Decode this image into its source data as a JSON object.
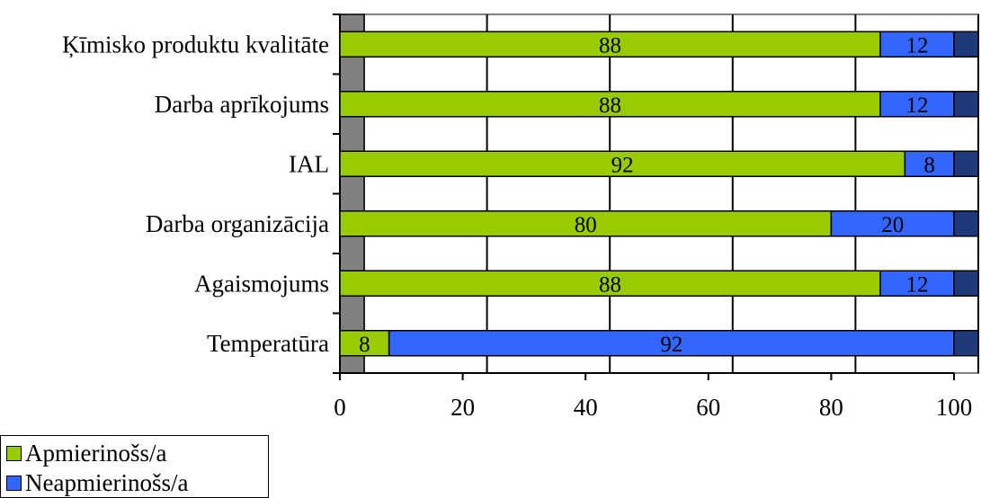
{
  "chart_data": {
    "type": "bar",
    "orientation": "horizontal",
    "stacked": true,
    "categories": [
      "Ķīmisko produktu kvalitāte",
      "Darba aprīkojums",
      "IAL",
      "Darba organizācija",
      "Agaismojums",
      "Temperatūra"
    ],
    "series": [
      {
        "name": "Apmierinošs/a",
        "color": "#99cc00",
        "values": [
          88,
          88,
          92,
          80,
          88,
          8
        ]
      },
      {
        "name": "Neapmierinošs/a",
        "color": "#3366ff",
        "values": [
          12,
          12,
          8,
          20,
          12,
          92
        ]
      }
    ],
    "data_labels": true,
    "xlim": [
      0,
      100
    ],
    "xticks": [
      0,
      20,
      40,
      60,
      80,
      100
    ],
    "grid": "vertical",
    "legend_position": "bottom-left",
    "depth_colors": {
      "side": "#1f3a7a",
      "wall": "#808080"
    }
  }
}
